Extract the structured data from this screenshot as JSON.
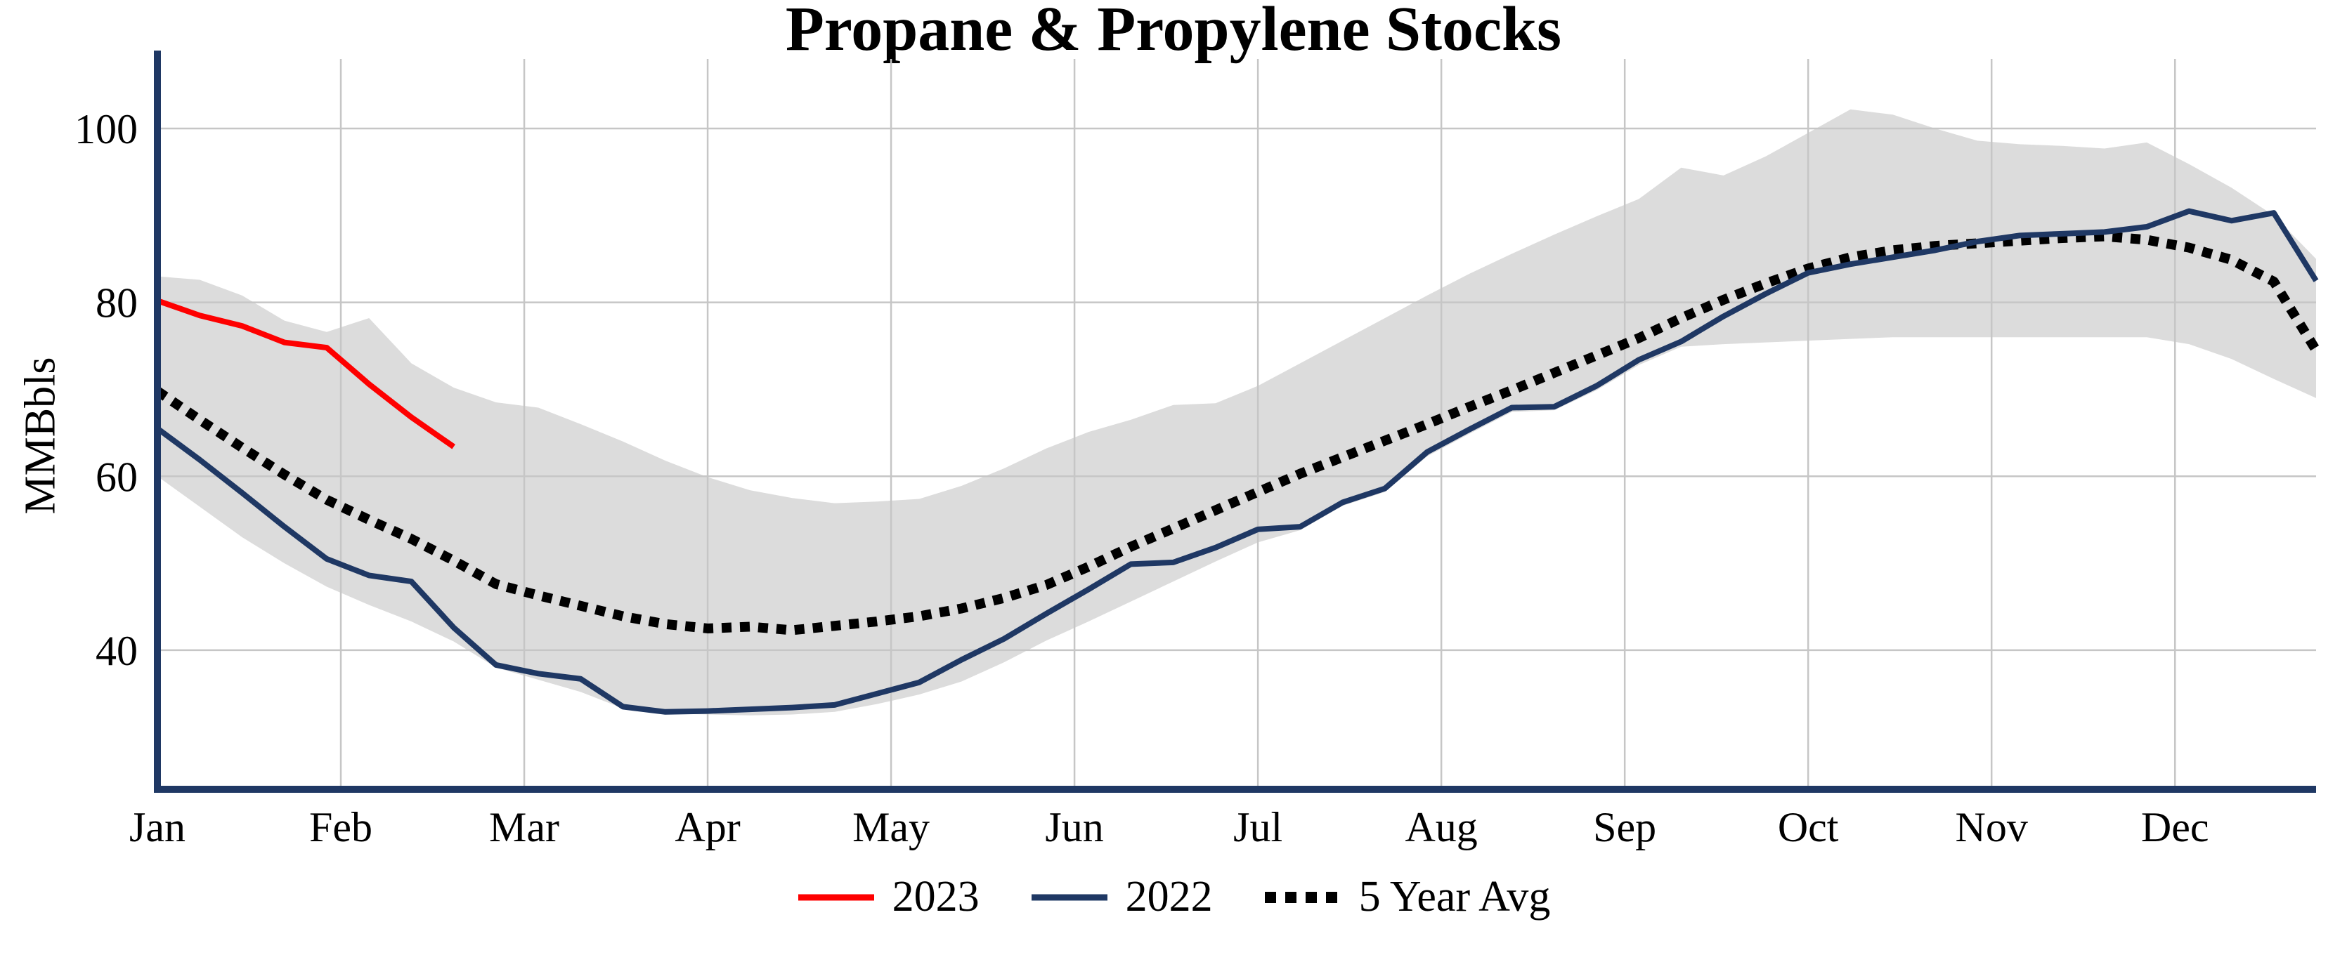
{
  "chart_data": {
    "type": "line",
    "title": "Propane & Propylene Stocks",
    "ylabel": "MMBbls",
    "xlabel": "",
    "x_tick_labels": [
      "Jan",
      "Feb",
      "Mar",
      "Apr",
      "May",
      "Jun",
      "Jul",
      "Aug",
      "Sep",
      "Oct",
      "Nov",
      "Dec"
    ],
    "y_ticks": [
      40,
      60,
      80,
      100
    ],
    "ylim": [
      24,
      108
    ],
    "grid": true,
    "legend_position": "bottom",
    "x_axis": {
      "unit": "weekly",
      "months_span": 12,
      "points_per_year": 52
    },
    "colors": {
      "red": "#fe0000",
      "navy": "#1f3864",
      "dotted": "#000000",
      "band": "#dcdcdc",
      "gridline": "#c6c6c6",
      "axis": "#1f3864",
      "text": "#000000"
    },
    "range_band": {
      "top": [
        83.0,
        82.6,
        80.8,
        77.9,
        76.6,
        78.2,
        73.0,
        70.2,
        68.5,
        67.9,
        66.0,
        64.0,
        61.8,
        59.9,
        58.4,
        57.5,
        56.9,
        57.1,
        57.4,
        58.9,
        60.9,
        63.2,
        65.1,
        66.5,
        68.2,
        68.4,
        70.4,
        73.0,
        75.6,
        78.2,
        80.8,
        83.3,
        85.6,
        87.8,
        89.9,
        91.9,
        95.5,
        94.6,
        96.8,
        99.5,
        102.2,
        101.6,
        100.0,
        98.6,
        98.2,
        98.0,
        97.7,
        98.4,
        95.9,
        93.2,
        90.0,
        85.0
      ],
      "bottom": [
        60.0,
        56.5,
        53.0,
        50.0,
        47.3,
        45.2,
        43.3,
        41.0,
        38.0,
        36.6,
        35.2,
        33.3,
        32.7,
        32.6,
        32.5,
        32.6,
        32.9,
        33.8,
        34.9,
        36.4,
        38.6,
        41.1,
        43.3,
        45.6,
        47.9,
        50.2,
        52.4,
        53.8,
        56.6,
        58.2,
        62.3,
        64.9,
        67.4,
        67.6,
        69.9,
        72.8,
        74.9,
        75.2,
        75.4,
        75.6,
        75.8,
        76.0,
        76.0,
        76.0,
        76.0,
        76.0,
        76.0,
        76.0,
        75.2,
        73.5,
        71.2,
        69.0
      ]
    },
    "series": [
      {
        "name": "2023",
        "color": "#fe0000",
        "style": "solid",
        "values": [
          80.2,
          78.5,
          77.3,
          75.4,
          74.8,
          70.6,
          66.8,
          63.4
        ]
      },
      {
        "name": "2022",
        "color": "#1f3864",
        "style": "solid",
        "values": [
          65.5,
          61.9,
          58.1,
          54.2,
          50.5,
          48.6,
          47.9,
          42.6,
          38.3,
          37.3,
          36.7,
          33.5,
          32.9,
          33.0,
          33.2,
          33.4,
          33.7,
          35.0,
          36.3,
          38.9,
          41.3,
          44.2,
          47.0,
          49.9,
          50.1,
          51.8,
          53.9,
          54.2,
          57.0,
          58.6,
          62.8,
          65.4,
          67.9,
          68.0,
          70.4,
          73.4,
          75.5,
          78.4,
          81.0,
          83.4,
          84.4,
          85.2,
          86.0,
          87.0,
          87.7,
          87.9,
          88.1,
          88.7,
          90.5,
          89.4,
          90.3,
          82.5
        ]
      },
      {
        "name": "5 Year Avg",
        "color": "#000000",
        "style": "dotted",
        "values": [
          69.8,
          66.5,
          63.3,
          60.2,
          57.3,
          55.0,
          52.8,
          50.3,
          47.6,
          46.3,
          45.1,
          43.9,
          43.0,
          42.5,
          42.7,
          42.3,
          42.8,
          43.3,
          43.9,
          44.8,
          46.0,
          47.5,
          49.6,
          51.9,
          54.0,
          56.1,
          58.2,
          60.3,
          62.2,
          64.1,
          66.0,
          68.0,
          69.9,
          71.9,
          73.9,
          75.9,
          78.2,
          80.3,
          82.2,
          83.9,
          85.2,
          86.0,
          86.5,
          86.8,
          87.1,
          87.4,
          87.6,
          87.2,
          86.3,
          84.9,
          82.4,
          74.5
        ]
      }
    ]
  }
}
